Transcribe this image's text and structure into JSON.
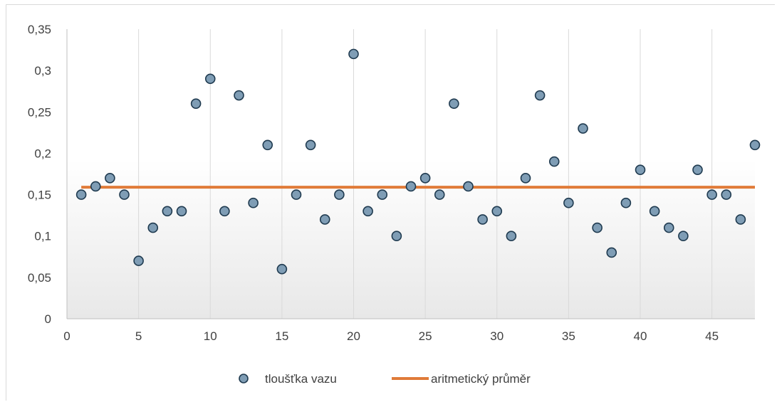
{
  "chart_data": {
    "type": "scatter",
    "title": "",
    "xlabel": "",
    "ylabel": "",
    "xlim": [
      0,
      48
    ],
    "ylim": [
      0,
      0.35
    ],
    "x_ticks": [
      0,
      5,
      10,
      15,
      20,
      25,
      30,
      35,
      40,
      45
    ],
    "x_tick_labels": [
      "0",
      "5",
      "10",
      "15",
      "20",
      "25",
      "30",
      "35",
      "40",
      "45"
    ],
    "y_ticks": [
      0,
      0.05,
      0.1,
      0.15,
      0.2,
      0.25,
      0.3,
      0.35
    ],
    "y_tick_labels": [
      "0",
      "0,05",
      "0,1",
      "0,15",
      "0,2",
      "0,25",
      "0,3",
      "0,35"
    ],
    "grid": "vertical",
    "legend_position": "bottom",
    "series": [
      {
        "name": "tloušťka vazu",
        "kind": "scatter",
        "color": "#7f9db5",
        "edge_color": "#1f3a4f",
        "x": [
          1,
          2,
          3,
          4,
          5,
          6,
          7,
          8,
          9,
          10,
          11,
          12,
          13,
          14,
          15,
          16,
          17,
          18,
          19,
          20,
          21,
          22,
          23,
          24,
          25,
          26,
          27,
          28,
          29,
          30,
          31,
          32,
          33,
          34,
          35,
          36,
          37,
          38,
          39,
          40,
          41,
          42,
          43,
          44,
          45,
          46,
          47,
          48
        ],
        "y": [
          0.15,
          0.16,
          0.17,
          0.15,
          0.07,
          0.11,
          0.13,
          0.13,
          0.26,
          0.29,
          0.13,
          0.27,
          0.14,
          0.21,
          0.06,
          0.15,
          0.21,
          0.12,
          0.15,
          0.32,
          0.13,
          0.15,
          0.1,
          0.16,
          0.17,
          0.15,
          0.26,
          0.16,
          0.12,
          0.13,
          0.1,
          0.17,
          0.27,
          0.19,
          0.14,
          0.23,
          0.11,
          0.08,
          0.14,
          0.18,
          0.13,
          0.11,
          0.1,
          0.18,
          0.15,
          0.15,
          0.12,
          0.21
        ]
      },
      {
        "name": "aritmetický průměr",
        "kind": "line",
        "color": "#e07b39",
        "x": [
          1,
          48
        ],
        "y": [
          0.159,
          0.159
        ]
      }
    ]
  }
}
